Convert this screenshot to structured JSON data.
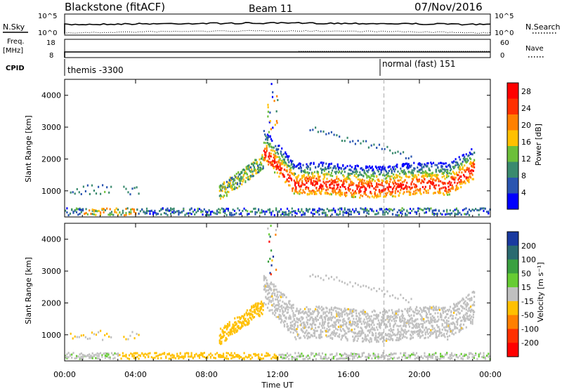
{
  "header": {
    "station": "Blackstone (fitACF)",
    "beam": "Beam 11",
    "date": "07/Nov/2016"
  },
  "panels": {
    "nsky_label": "N.Sky",
    "nsky_ticks": [
      "10^5",
      "10^0"
    ],
    "nsearch_label": "N.Search",
    "nsearch_ticks": [
      "10^5",
      "10^0"
    ],
    "freq_label": "Freq.",
    "freq_unit": "[MHz]",
    "freq_ticks": [
      "18",
      "8"
    ],
    "nave_label": "Nave",
    "nave_ticks": [
      "60",
      "0"
    ],
    "cpid_label": "CPID",
    "cpid_segments": [
      "themis -3300",
      "normal (fast) 151"
    ]
  },
  "chart_data": [
    {
      "type": "heatmap",
      "name": "power",
      "xlabel": "Time UT",
      "ylabel": "Slant Range [km]",
      "x_ticks": [
        "00:00",
        "04:00",
        "08:00",
        "12:00",
        "16:00",
        "20:00",
        "00:00"
      ],
      "x_range_hours": [
        0,
        24
      ],
      "y_ticks": [
        1000,
        2000,
        3000,
        4000
      ],
      "ylim": [
        180,
        4500
      ],
      "colorbar_label": "Power [dB]",
      "colorbar_ticks": [
        "4",
        "8",
        "12",
        "16",
        "20",
        "24",
        "28"
      ],
      "colorbar_range": [
        0,
        30
      ],
      "colors": [
        "#0000ff",
        "#2a55b0",
        "#3a8a6e",
        "#6cbf3a",
        "#ffc000",
        "#ff8000",
        "#ff3000",
        "#ff0000"
      ]
    },
    {
      "type": "heatmap",
      "name": "velocity",
      "xlabel": "Time UT",
      "ylabel": "Slant Range [km]",
      "x_ticks": [
        "00:00",
        "04:00",
        "08:00",
        "12:00",
        "16:00",
        "20:00",
        "00:00"
      ],
      "x_range_hours": [
        0,
        24
      ],
      "y_ticks": [
        1000,
        2000,
        3000,
        4000
      ],
      "ylim": [
        180,
        4500
      ],
      "colorbar_label": "Velocity [m s⁻¹]",
      "colorbar_ticks": [
        "200",
        "100",
        "50",
        "15",
        "-15",
        "-50",
        "-100",
        "-200"
      ],
      "colors": [
        "#1a3aa0",
        "#2a6a70",
        "#3aa040",
        "#66cc33",
        "#c0c0c0",
        "#ffc000",
        "#ff8000",
        "#ff3000",
        "#ff0000"
      ]
    }
  ]
}
